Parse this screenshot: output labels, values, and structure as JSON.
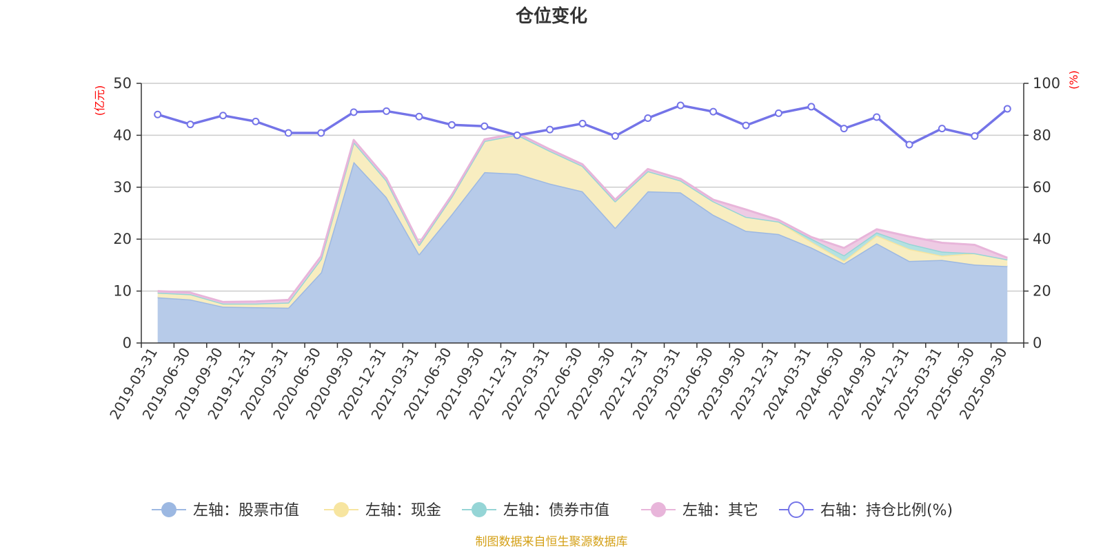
{
  "title": "仓位变化",
  "source_note": "制图数据来自恒生聚源数据库",
  "chart_data": {
    "type": "area",
    "categories": [
      "2019-03-31",
      "2019-06-30",
      "2019-09-30",
      "2019-12-31",
      "2020-03-31",
      "2020-06-30",
      "2020-09-30",
      "2020-12-31",
      "2021-03-31",
      "2021-06-30",
      "2021-09-30",
      "2021-12-31",
      "2022-03-31",
      "2022-06-30",
      "2022-09-30",
      "2022-12-31",
      "2023-03-31",
      "2023-06-30",
      "2023-09-30",
      "2023-12-31",
      "2024-03-31",
      "2024-06-30",
      "2024-09-30",
      "2024-12-31",
      "2025-03-31",
      "2025-06-30",
      "2025-09-30"
    ],
    "left_axis": {
      "unit": "(亿元)",
      "ylim": [
        0,
        50
      ],
      "ticks": [
        "0",
        "10",
        "20",
        "30",
        "40",
        "50"
      ]
    },
    "right_axis": {
      "unit": "(%)",
      "ylim": [
        0,
        100
      ],
      "ticks": [
        "0",
        "20",
        "40",
        "60",
        "80",
        "100"
      ]
    },
    "grid": true,
    "legend_position": "bottom",
    "series": [
      {
        "name": "左轴：股票市值",
        "axis": "left",
        "kind": "stacked-area",
        "color": "#9cb8e2",
        "fill": "#b7cbe9",
        "values": [
          8.8,
          8.4,
          7.0,
          6.9,
          6.8,
          13.6,
          34.9,
          28.1,
          17.1,
          24.8,
          32.9,
          32.6,
          30.7,
          29.2,
          22.2,
          29.2,
          29.0,
          24.7,
          21.6,
          21.0,
          18.4,
          15.3,
          19.2,
          15.8,
          16.0,
          15.1,
          14.8
        ]
      },
      {
        "name": "左轴：现金",
        "axis": "left",
        "kind": "stacked-area",
        "color": "#f7e5a0",
        "fill": "#f8edc0",
        "values": [
          0.9,
          1.0,
          0.6,
          0.7,
          1.0,
          2.6,
          3.8,
          3.2,
          1.8,
          3.4,
          6.0,
          7.5,
          6.3,
          4.9,
          5.1,
          3.9,
          2.3,
          2.6,
          2.7,
          2.4,
          1.1,
          0.5,
          1.5,
          2.3,
          0.8,
          2.2,
          1.3
        ]
      },
      {
        "name": "左轴：债券市值",
        "axis": "left",
        "kind": "stacked-area",
        "color": "#95d5d6",
        "fill": "#b4e1e1",
        "values": [
          0,
          0,
          0,
          0,
          0,
          0,
          0,
          0,
          0,
          0,
          0,
          0,
          0,
          0,
          0,
          0,
          0,
          0,
          0,
          0,
          0.6,
          1.1,
          0.6,
          1.0,
          0.8,
          0,
          0
        ]
      },
      {
        "name": "左轴：其它",
        "axis": "left",
        "kind": "stacked-area",
        "color": "#e8b5da",
        "fill": "#eecbe4",
        "values": [
          0.3,
          0.3,
          0.3,
          0.4,
          0.5,
          0.5,
          0.4,
          0.4,
          0.3,
          0.3,
          0.3,
          0.3,
          0.3,
          0.3,
          0.3,
          0.4,
          0.3,
          0.3,
          1.4,
          0.3,
          0.3,
          1.4,
          0.6,
          1.4,
          1.7,
          1.6,
          0.3
        ]
      },
      {
        "name": "右轴：持仓比例(%)",
        "axis": "right",
        "kind": "line",
        "color": "#7474e8",
        "values": [
          88.0,
          84.2,
          87.6,
          85.3,
          80.9,
          80.9,
          88.9,
          89.3,
          87.2,
          84.0,
          83.5,
          80.0,
          82.2,
          84.5,
          79.7,
          86.6,
          91.5,
          89.1,
          83.8,
          88.5,
          91.0,
          82.6,
          87.0,
          76.4,
          82.6,
          79.7,
          90.2
        ]
      }
    ]
  }
}
